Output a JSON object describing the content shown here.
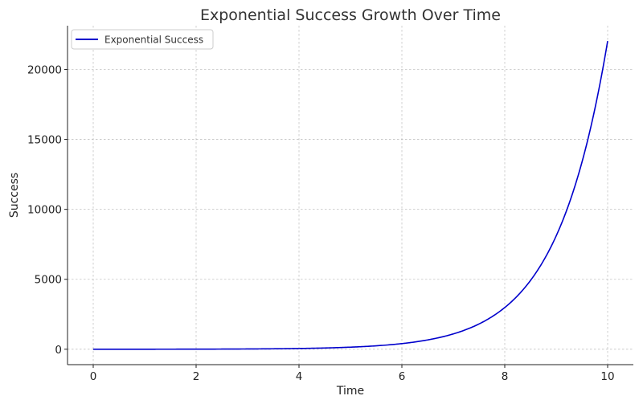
{
  "chart_data": {
    "type": "line",
    "title": "Exponential Success Growth Over Time",
    "xlabel": "Time",
    "ylabel": "Success",
    "xlim": [
      -0.5,
      10.5
    ],
    "ylim": [
      -1101,
      23127
    ],
    "x_ticks": [
      0,
      2,
      4,
      6,
      8,
      10
    ],
    "x_tick_labels": [
      "0",
      "2",
      "4",
      "6",
      "8",
      "10"
    ],
    "y_ticks": [
      0,
      5000,
      10000,
      15000,
      20000
    ],
    "y_tick_labels": [
      "0",
      "5000",
      "10000",
      "15000",
      "20000"
    ],
    "grid": true,
    "legend_position": "upper-left",
    "series": [
      {
        "name": "Exponential Success",
        "color": "#0000cc",
        "function": "exp(x)",
        "x": [
          0,
          0.5,
          1,
          1.5,
          2,
          2.5,
          3,
          3.5,
          4,
          4.5,
          5,
          5.5,
          6,
          6.5,
          7,
          7.5,
          8,
          8.25,
          8.5,
          8.75,
          9,
          9.25,
          9.5,
          9.75,
          10
        ],
        "values": [
          1,
          1.6,
          2.7,
          4.5,
          7.4,
          12.2,
          20.1,
          33.1,
          54.6,
          90,
          148.4,
          244.7,
          403.4,
          665.1,
          1096.6,
          1808,
          2981,
          3827.6,
          4914.8,
          6310.7,
          8103.1,
          10404.6,
          13359.7,
          17154.2,
          22026.5
        ]
      }
    ]
  }
}
